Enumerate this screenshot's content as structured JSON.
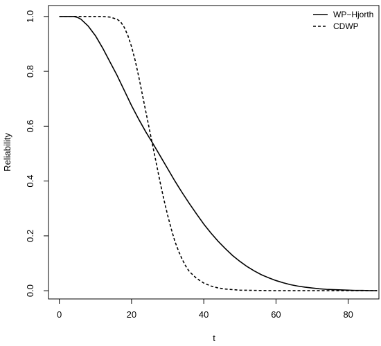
{
  "chart_data": {
    "type": "line",
    "title": "",
    "xlabel": "t",
    "ylabel": "Reliability",
    "xlim": [
      -3,
      88.5
    ],
    "ylim": [
      -0.03,
      1.04
    ],
    "xticks": [
      0,
      20,
      40,
      60,
      80
    ],
    "yticks": [
      0.0,
      0.2,
      0.4,
      0.6,
      0.8,
      1.0
    ],
    "xtick_labels": [
      "0",
      "20",
      "40",
      "60",
      "80"
    ],
    "ytick_labels": [
      "0.0",
      "0.2",
      "0.4",
      "0.6",
      "0.8",
      "1.0"
    ],
    "grid": false,
    "legend_position": "top-right",
    "series": [
      {
        "name": "WP−Hjorth",
        "style": "solid",
        "color": "#000000",
        "x": [
          0,
          2,
          4,
          5,
          6,
          8,
          10,
          12,
          14,
          16,
          18,
          20,
          22,
          24,
          26,
          28,
          30,
          32,
          34,
          36,
          38,
          40,
          42,
          44,
          46,
          48,
          50,
          52,
          54,
          56,
          58,
          60,
          62,
          64,
          66,
          68,
          70,
          72,
          74,
          76,
          78,
          80,
          82,
          84,
          86,
          88
        ],
        "y": [
          1.0,
          1.0,
          1.0,
          0.997,
          0.99,
          0.965,
          0.93,
          0.885,
          0.835,
          0.785,
          0.73,
          0.675,
          0.625,
          0.578,
          0.535,
          0.49,
          0.445,
          0.4,
          0.358,
          0.318,
          0.28,
          0.243,
          0.21,
          0.18,
          0.153,
          0.128,
          0.107,
          0.088,
          0.072,
          0.058,
          0.047,
          0.037,
          0.029,
          0.022,
          0.017,
          0.013,
          0.01,
          0.007,
          0.005,
          0.004,
          0.003,
          0.002,
          0.001,
          0.001,
          0.0,
          0.0
        ]
      },
      {
        "name": "CDWP",
        "style": "dashed",
        "color": "#000000",
        "x": [
          0,
          4,
          8,
          12,
          14,
          16,
          17,
          18,
          19,
          20,
          21,
          22,
          23,
          24,
          25,
          26,
          27,
          28,
          29,
          30,
          31,
          32,
          33,
          34,
          35,
          36,
          38,
          40,
          42,
          44,
          46,
          48,
          50,
          55,
          60,
          70,
          80,
          88
        ],
        "y": [
          1.0,
          1.0,
          1.0,
          1.0,
          0.998,
          0.99,
          0.98,
          0.96,
          0.93,
          0.89,
          0.84,
          0.78,
          0.715,
          0.65,
          0.585,
          0.52,
          0.455,
          0.39,
          0.33,
          0.275,
          0.225,
          0.18,
          0.145,
          0.115,
          0.09,
          0.07,
          0.045,
          0.028,
          0.017,
          0.01,
          0.006,
          0.004,
          0.002,
          0.001,
          0.0,
          0.0,
          0.0,
          0.0
        ]
      }
    ]
  }
}
